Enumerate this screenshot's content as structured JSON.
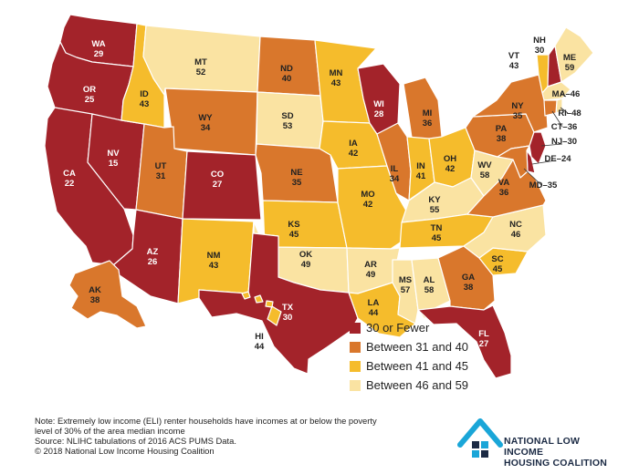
{
  "legend": {
    "items": [
      {
        "label": "30 or Fewer",
        "color": "#a3232a"
      },
      {
        "label": "Between 31 and 40",
        "color": "#d9772c"
      },
      {
        "label": "Between 41 and 45",
        "color": "#f5bc2c"
      },
      {
        "label": "Between 46 and 59",
        "color": "#fae3a2"
      }
    ]
  },
  "states": [
    {
      "abbr": "WA",
      "value": 29
    },
    {
      "abbr": "OR",
      "value": 25
    },
    {
      "abbr": "CA",
      "value": 22
    },
    {
      "abbr": "NV",
      "value": 15
    },
    {
      "abbr": "ID",
      "value": 43
    },
    {
      "abbr": "MT",
      "value": 52
    },
    {
      "abbr": "WY",
      "value": 34
    },
    {
      "abbr": "UT",
      "value": 31
    },
    {
      "abbr": "AZ",
      "value": 26
    },
    {
      "abbr": "CO",
      "value": 27
    },
    {
      "abbr": "NM",
      "value": 43
    },
    {
      "abbr": "ND",
      "value": 40
    },
    {
      "abbr": "SD",
      "value": 53
    },
    {
      "abbr": "NE",
      "value": 35
    },
    {
      "abbr": "KS",
      "value": 45
    },
    {
      "abbr": "OK",
      "value": 49
    },
    {
      "abbr": "TX",
      "value": 30
    },
    {
      "abbr": "MN",
      "value": 43
    },
    {
      "abbr": "IA",
      "value": 42
    },
    {
      "abbr": "MO",
      "value": 42
    },
    {
      "abbr": "AR",
      "value": 49
    },
    {
      "abbr": "LA",
      "value": 44
    },
    {
      "abbr": "WI",
      "value": 28
    },
    {
      "abbr": "IL",
      "value": 34
    },
    {
      "abbr": "MI",
      "value": 36
    },
    {
      "abbr": "IN",
      "value": 41
    },
    {
      "abbr": "OH",
      "value": 42
    },
    {
      "abbr": "KY",
      "value": 55
    },
    {
      "abbr": "TN",
      "value": 45
    },
    {
      "abbr": "MS",
      "value": 57
    },
    {
      "abbr": "AL",
      "value": 58
    },
    {
      "abbr": "GA",
      "value": 38
    },
    {
      "abbr": "FL",
      "value": 27
    },
    {
      "abbr": "SC",
      "value": 45
    },
    {
      "abbr": "NC",
      "value": 46
    },
    {
      "abbr": "VA",
      "value": 36
    },
    {
      "abbr": "WV",
      "value": 58
    },
    {
      "abbr": "PA",
      "value": 38
    },
    {
      "abbr": "NY",
      "value": 35
    },
    {
      "abbr": "VT",
      "value": 43
    },
    {
      "abbr": "NH",
      "value": 30
    },
    {
      "abbr": "ME",
      "value": 59
    },
    {
      "abbr": "MA",
      "value": 46
    },
    {
      "abbr": "RI",
      "value": 48
    },
    {
      "abbr": "CT",
      "value": 36
    },
    {
      "abbr": "NJ",
      "value": 30
    },
    {
      "abbr": "DE",
      "value": 24
    },
    {
      "abbr": "MD",
      "value": 35
    },
    {
      "abbr": "AK",
      "value": 38
    },
    {
      "abbr": "HI",
      "value": 44
    }
  ],
  "note": {
    "line1": "Note: Extremely low income (ELI) renter households have incomes at or below the poverty",
    "line2": "level of 30% of the area median income",
    "line3": "Source: NLIHC tabulations of 2016 ACS PUMS Data.",
    "line4": "© 2018 National Low Income Housing Coalition"
  },
  "logo": {
    "line1": "NATIONAL LOW INCOME",
    "line2": "HOUSING COALITION"
  }
}
